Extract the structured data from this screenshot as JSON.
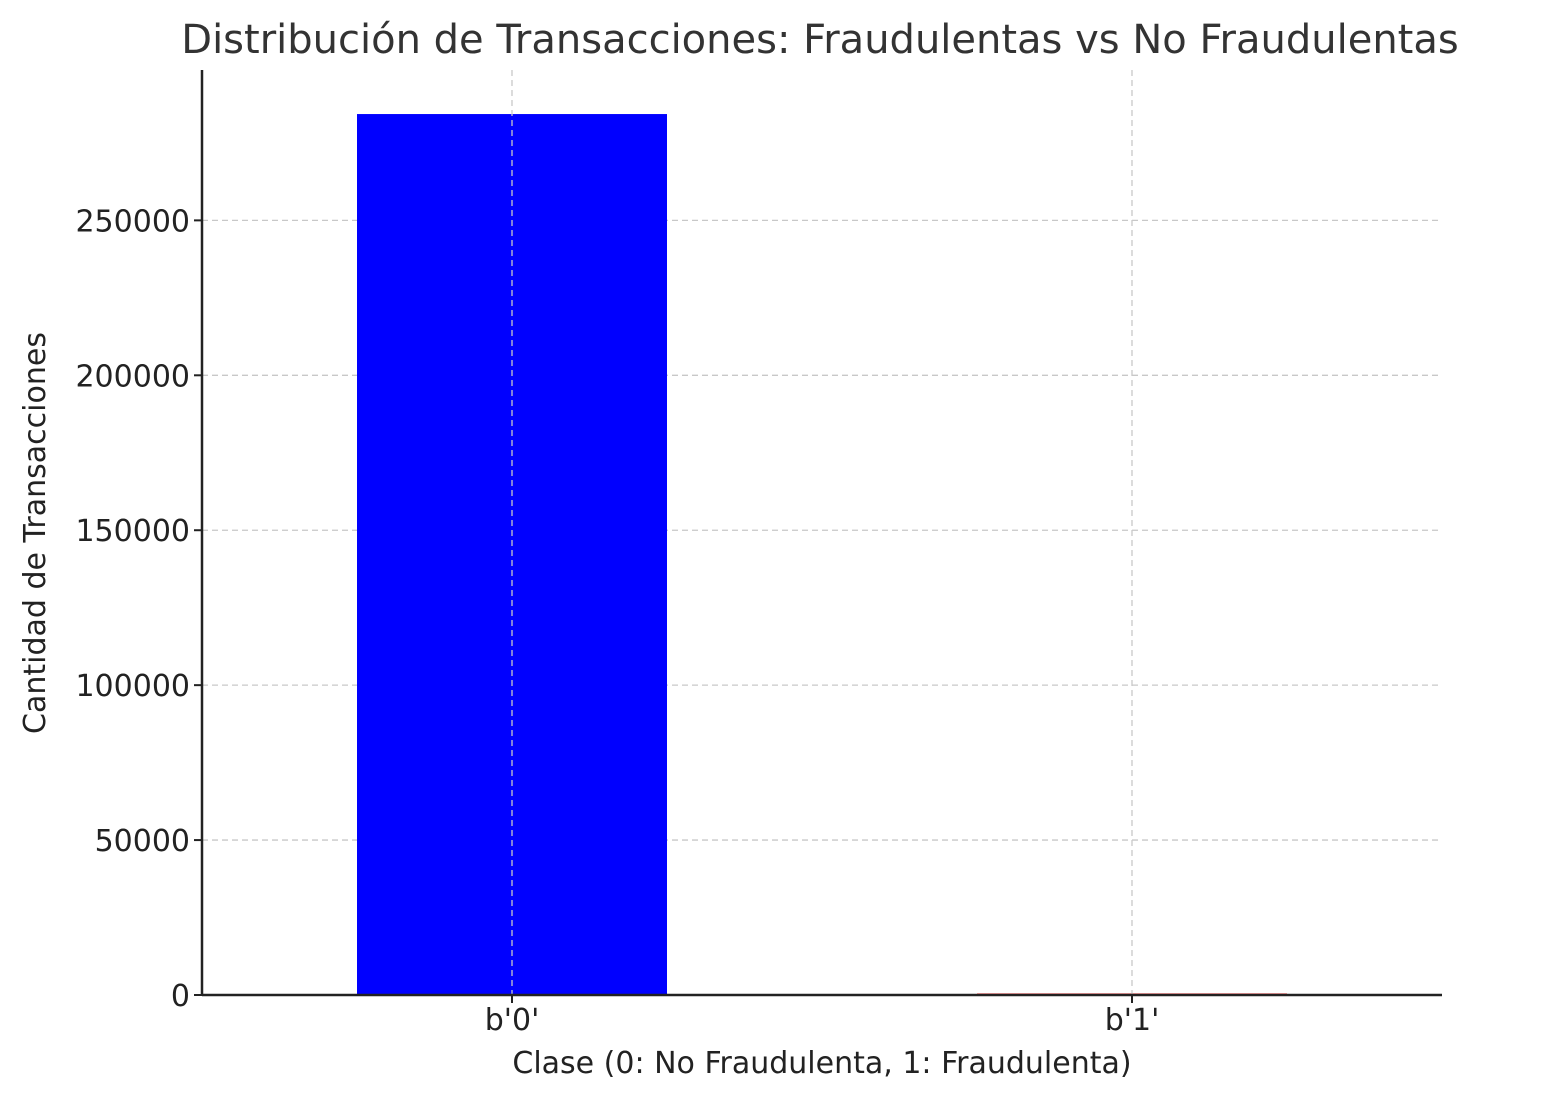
{
  "chart_data": {
    "type": "bar",
    "title": "Distribución de Transacciones: Fraudulentas vs No Fraudulentas",
    "xlabel": "Clase (0: No Fraudulenta, 1: Fraudulenta)",
    "ylabel": "Cantidad de Transacciones",
    "categories": [
      "b'0'",
      "b'1'"
    ],
    "values": [
      284315,
      492
    ],
    "ylim": [
      0,
      298531
    ],
    "yticks": [
      0,
      50000,
      100000,
      150000,
      200000,
      250000
    ],
    "ytick_labels": [
      "0",
      "50000",
      "100000",
      "150000",
      "200000",
      "250000"
    ],
    "grid": true,
    "bar_colors": [
      "#0000ff",
      "#ff0000"
    ]
  }
}
